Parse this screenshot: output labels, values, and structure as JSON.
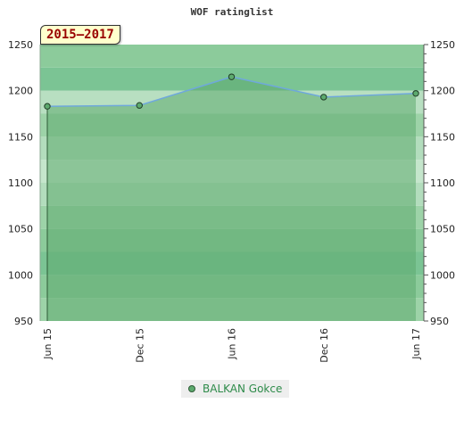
{
  "chart_data": {
    "type": "area",
    "title": "WOF ratinglist",
    "period_label": "2015–2017",
    "categories": [
      "Jun 15",
      "Dec 15",
      "Jun 16",
      "Dec 16",
      "Jun 17"
    ],
    "series": [
      {
        "name": "BALKAN Gokce",
        "values": [
          1183,
          1184,
          1215,
          1193,
          1197
        ]
      }
    ],
    "ylim": [
      950,
      1250
    ],
    "yticks": [
      950,
      1000,
      1050,
      1100,
      1150,
      1200,
      1250
    ],
    "grid": true,
    "legend_position": "bottom-center",
    "colors": {
      "line": "#6fa8dc",
      "fill": "#5daa6e",
      "marker": "#5daa6e",
      "badge_text": "#990000"
    }
  }
}
